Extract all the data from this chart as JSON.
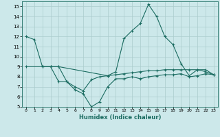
{
  "xlabel": "Humidex (Indice chaleur)",
  "bg_color": "#cce8ea",
  "grid_color": "#aacccc",
  "line_color": "#1a6b60",
  "xlim": [
    -0.5,
    23.5
  ],
  "ylim": [
    5,
    15.5
  ],
  "xticks": [
    0,
    1,
    2,
    3,
    4,
    5,
    6,
    7,
    8,
    9,
    10,
    11,
    12,
    13,
    14,
    15,
    16,
    17,
    18,
    19,
    20,
    21,
    22,
    23
  ],
  "yticks": [
    5,
    6,
    7,
    8,
    9,
    10,
    11,
    12,
    13,
    14,
    15
  ],
  "line1_x": [
    0,
    1,
    2,
    3,
    4,
    10,
    11,
    12,
    13,
    14,
    15,
    16,
    17,
    18,
    19,
    20,
    21,
    22,
    23
  ],
  "line1_y": [
    12,
    11.7,
    9,
    9,
    9,
    8.1,
    8.5,
    11.8,
    12.6,
    13.3,
    15.2,
    14.0,
    12.0,
    11.2,
    9.3,
    8.1,
    8.7,
    8.5,
    8.2
  ],
  "line2_x": [
    0,
    2,
    3,
    4,
    5,
    6,
    7,
    8,
    9,
    10,
    11,
    12,
    13,
    14,
    15,
    16,
    17,
    18,
    19,
    20,
    21,
    22,
    23
  ],
  "line2_y": [
    9,
    9,
    9,
    9,
    7.5,
    6.7,
    6.3,
    5.0,
    5.5,
    7.0,
    7.8,
    7.8,
    8.0,
    7.8,
    8.0,
    8.1,
    8.2,
    8.2,
    8.3,
    8.0,
    8.1,
    8.3,
    8.2
  ],
  "line3_x": [
    2,
    3,
    4,
    5,
    6,
    7,
    8,
    9,
    10,
    11,
    12,
    13,
    14,
    15,
    16,
    17,
    18,
    19,
    20,
    21,
    22,
    23
  ],
  "line3_y": [
    9,
    9,
    7.5,
    7.5,
    7.0,
    6.6,
    7.7,
    8.0,
    8.1,
    8.2,
    8.3,
    8.4,
    8.5,
    8.6,
    8.6,
    8.7,
    8.7,
    8.7,
    8.7,
    8.7,
    8.7,
    8.2
  ]
}
